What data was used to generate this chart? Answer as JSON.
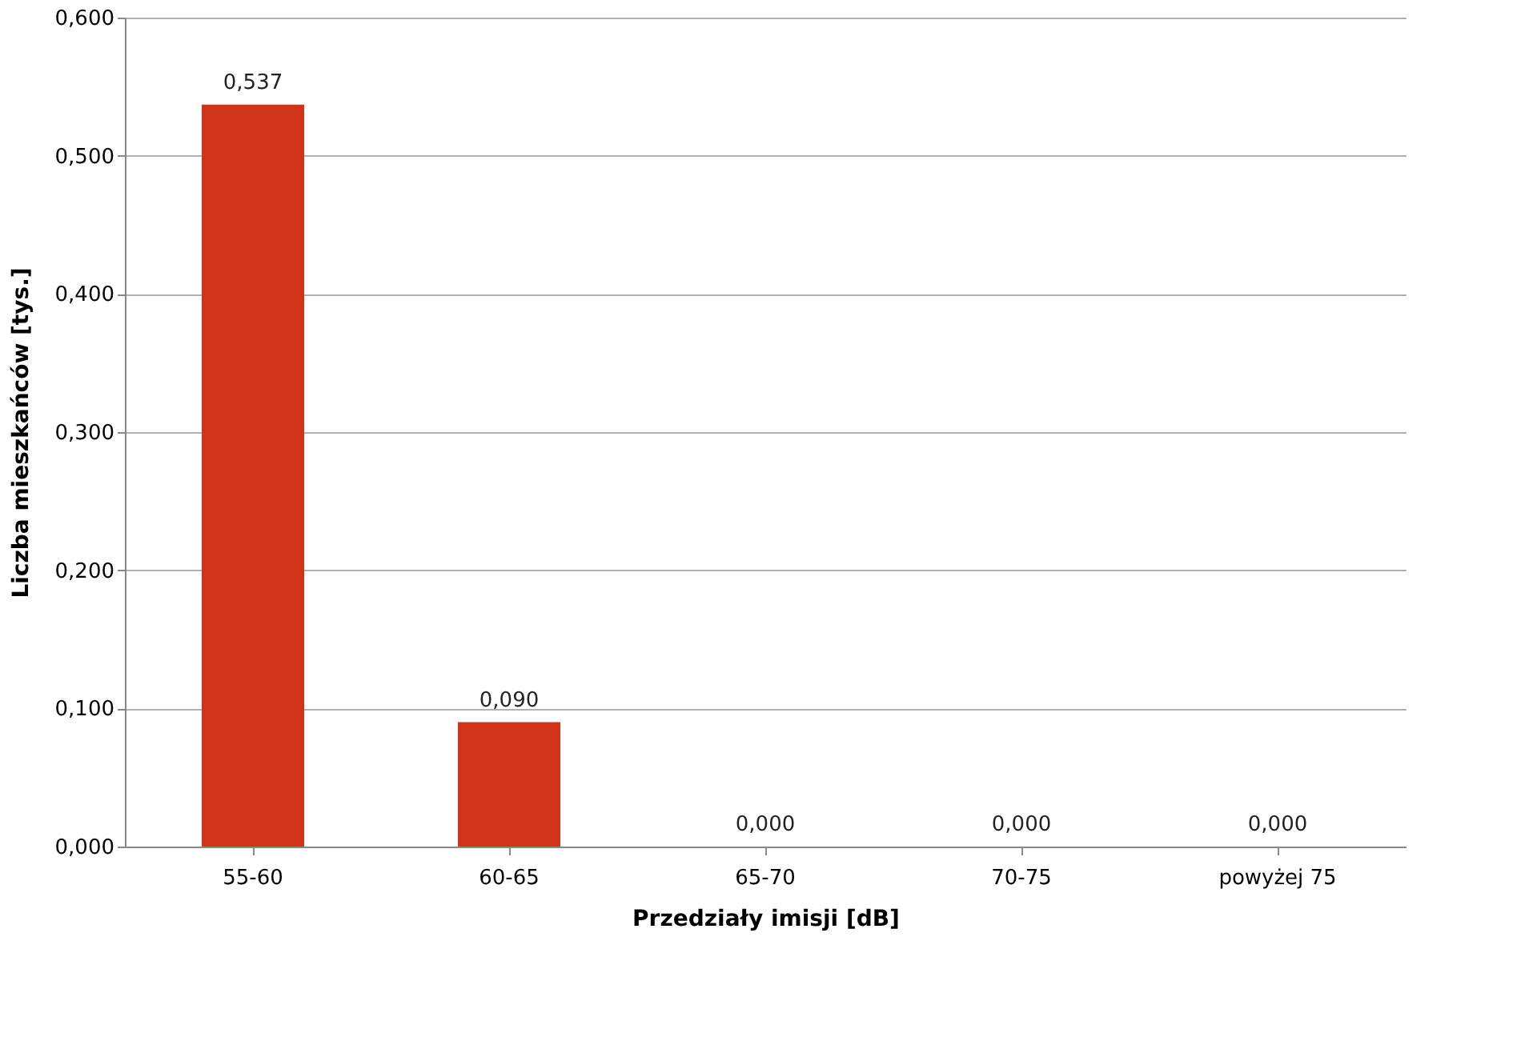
{
  "chart_data": {
    "type": "bar",
    "xlabel": "Przedziały imisji [dB]",
    "ylabel": "Liczba mieszkańców [tys.]",
    "categories": [
      "55-60",
      "60-65",
      "65-70",
      "70-75",
      "powyżej 75"
    ],
    "values": [
      0.537,
      0.09,
      0,
      0,
      0
    ],
    "value_labels": [
      "0,537",
      "0,090",
      "0,000",
      "0,000",
      "0,000"
    ],
    "color": "#d03418",
    "ylim": [
      0,
      0.6
    ],
    "yticks": [
      {
        "value": 0,
        "label": "0,000"
      },
      {
        "value": 0.1,
        "label": "0,100"
      },
      {
        "value": 0.2,
        "label": "0,200"
      },
      {
        "value": 0.3,
        "label": "0,300"
      },
      {
        "value": 0.4,
        "label": "0,400"
      },
      {
        "value": 0.5,
        "label": "0,500"
      },
      {
        "value": 0.6,
        "label": "0,600"
      }
    ],
    "grid": "y"
  }
}
